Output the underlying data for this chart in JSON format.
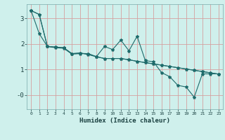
{
  "title": "",
  "xlabel": "Humidex (Indice chaleur)",
  "bg_color": "#cff0ec",
  "line_color": "#1e6b6b",
  "grid_color": "#d4a0a0",
  "xlim": [
    -0.5,
    23.5
  ],
  "ylim": [
    -0.55,
    3.55
  ],
  "line1_x": [
    0,
    1,
    2,
    3,
    4,
    5,
    6,
    7,
    8,
    9,
    10,
    11,
    12,
    13,
    14,
    15,
    16,
    17,
    18,
    19,
    20,
    21,
    22,
    23
  ],
  "line1_y": [
    3.3,
    3.15,
    1.9,
    1.85,
    1.83,
    1.6,
    1.62,
    1.62,
    1.5,
    1.43,
    1.43,
    1.43,
    1.38,
    1.32,
    1.27,
    1.22,
    1.17,
    1.12,
    1.07,
    1.02,
    0.97,
    0.92,
    0.87,
    0.82
  ],
  "line2_x": [
    0,
    1,
    2,
    3,
    4,
    5,
    6,
    7,
    8,
    9,
    10,
    11,
    12,
    13,
    14,
    15,
    16,
    17,
    18,
    19,
    20,
    21,
    22,
    23
  ],
  "line2_y": [
    3.3,
    2.4,
    1.9,
    1.88,
    1.85,
    1.62,
    1.65,
    1.58,
    1.5,
    1.9,
    1.78,
    2.15,
    1.73,
    2.3,
    1.35,
    1.3,
    0.88,
    0.72,
    0.38,
    0.32,
    -0.08,
    0.83,
    0.83,
    0.83
  ],
  "line3_x": [
    0,
    1,
    2,
    3,
    4,
    5,
    6,
    7,
    8,
    9,
    10,
    11,
    12,
    13,
    14,
    15,
    16,
    17,
    18,
    19,
    20,
    21,
    22,
    23
  ],
  "line3_y": [
    3.3,
    3.15,
    1.9,
    1.87,
    1.85,
    1.62,
    1.63,
    1.62,
    1.5,
    1.43,
    1.43,
    1.43,
    1.38,
    1.32,
    1.27,
    1.22,
    1.17,
    1.12,
    1.07,
    1.02,
    0.97,
    0.92,
    0.87,
    0.82
  ]
}
